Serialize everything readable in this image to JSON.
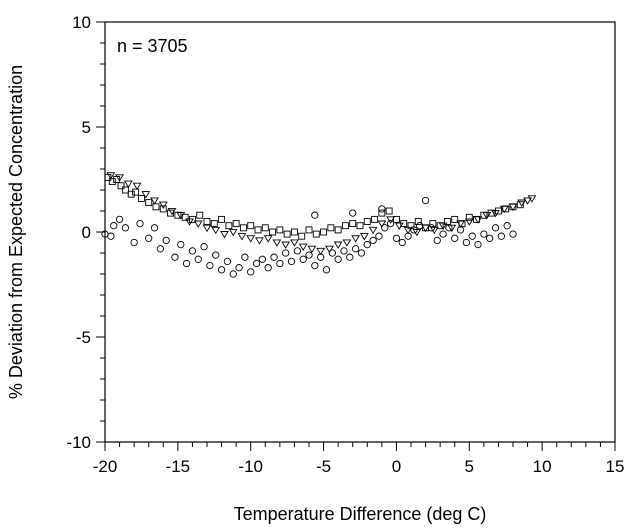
{
  "chart_data": {
    "type": "scatter",
    "title": "",
    "xlabel": "Temperature Difference (deg C)",
    "ylabel": "% Deviation from Expected Concentration",
    "xlim": [
      -20,
      15
    ],
    "ylim": [
      -10,
      10
    ],
    "xticks": [
      -20,
      -15,
      -10,
      -5,
      0,
      5,
      10,
      15
    ],
    "yticks": [
      -10,
      -5,
      0,
      5,
      10
    ],
    "xtick_labels": [
      "-20",
      "-15",
      "-10",
      "-5",
      "0",
      "5",
      "10",
      "15"
    ],
    "ytick_labels": [
      "-10",
      "-5",
      "0",
      "5",
      "10"
    ],
    "annotation": "n = 3705",
    "grid": false,
    "markers": [
      "circle",
      "square",
      "triangle-down"
    ],
    "series": [
      {
        "marker": "square",
        "points": [
          [
            -19.8,
            2.6
          ],
          [
            -19.5,
            2.4
          ],
          [
            -19.2,
            2.5
          ],
          [
            -18.9,
            2.2
          ],
          [
            -18.6,
            2.0
          ],
          [
            -18.2,
            1.8
          ],
          [
            -17.9,
            1.9
          ],
          [
            -17.5,
            1.6
          ],
          [
            -17.0,
            1.4
          ],
          [
            -16.5,
            1.2
          ],
          [
            -16.0,
            1.1
          ],
          [
            -15.5,
            0.9
          ],
          [
            -15.0,
            0.8
          ],
          [
            -14.5,
            0.7
          ],
          [
            -14.0,
            0.6
          ],
          [
            -13.5,
            0.8
          ],
          [
            -13.0,
            0.5
          ],
          [
            -12.5,
            0.4
          ],
          [
            -12.0,
            0.6
          ],
          [
            -11.5,
            0.3
          ],
          [
            -11.0,
            0.4
          ],
          [
            -10.5,
            0.2
          ],
          [
            -10.0,
            0.3
          ],
          [
            -9.5,
            0.1
          ],
          [
            -9.0,
            0.2
          ],
          [
            -8.5,
            0.0
          ],
          [
            -8.0,
            0.1
          ],
          [
            -7.5,
            -0.1
          ],
          [
            -7.0,
            0.0
          ],
          [
            -6.5,
            -0.2
          ],
          [
            -6.0,
            0.1
          ],
          [
            -5.5,
            -0.1
          ],
          [
            -5.0,
            0.0
          ],
          [
            -4.5,
            0.2
          ],
          [
            -4.0,
            0.1
          ],
          [
            -3.5,
            0.3
          ],
          [
            -3.0,
            0.4
          ],
          [
            -2.5,
            0.3
          ],
          [
            -2.0,
            0.5
          ],
          [
            -1.5,
            0.6
          ],
          [
            -1.0,
            0.9
          ],
          [
            -0.5,
            1.0
          ],
          [
            0.0,
            0.6
          ],
          [
            0.5,
            0.4
          ],
          [
            1.0,
            0.3
          ],
          [
            1.5,
            0.5
          ],
          [
            2.0,
            0.2
          ],
          [
            2.5,
            0.4
          ],
          [
            3.0,
            0.3
          ],
          [
            3.5,
            0.5
          ],
          [
            4.0,
            0.6
          ],
          [
            4.5,
            0.4
          ],
          [
            5.0,
            0.7
          ],
          [
            5.5,
            0.6
          ],
          [
            6.0,
            0.8
          ],
          [
            6.5,
            0.9
          ],
          [
            7.0,
            1.0
          ],
          [
            7.5,
            1.1
          ],
          [
            8.0,
            1.2
          ],
          [
            8.5,
            1.3
          ]
        ]
      },
      {
        "marker": "triangle-down",
        "points": [
          [
            -19.6,
            2.7
          ],
          [
            -19.0,
            2.6
          ],
          [
            -18.4,
            2.3
          ],
          [
            -17.8,
            2.2
          ],
          [
            -17.2,
            1.8
          ],
          [
            -16.6,
            1.5
          ],
          [
            -16.0,
            1.3
          ],
          [
            -15.4,
            1.0
          ],
          [
            -14.8,
            0.8
          ],
          [
            -14.2,
            0.5
          ],
          [
            -13.6,
            0.4
          ],
          [
            -13.0,
            0.2
          ],
          [
            -12.4,
            0.1
          ],
          [
            -11.8,
            -0.1
          ],
          [
            -11.2,
            0.0
          ],
          [
            -10.6,
            -0.2
          ],
          [
            -10.0,
            -0.3
          ],
          [
            -9.4,
            -0.4
          ],
          [
            -8.8,
            -0.3
          ],
          [
            -8.2,
            -0.5
          ],
          [
            -7.6,
            -0.6
          ],
          [
            -7.0,
            -0.5
          ],
          [
            -6.4,
            -0.7
          ],
          [
            -5.8,
            -0.8
          ],
          [
            -5.2,
            -0.9
          ],
          [
            -4.6,
            -0.8
          ],
          [
            -4.0,
            -0.6
          ],
          [
            -3.4,
            -0.5
          ],
          [
            -2.8,
            -0.3
          ],
          [
            -2.2,
            -0.2
          ],
          [
            -1.6,
            0.1
          ],
          [
            -1.0,
            0.4
          ],
          [
            -0.4,
            0.6
          ],
          [
            0.2,
            0.3
          ],
          [
            0.8,
            0.1
          ],
          [
            1.4,
            0.0
          ],
          [
            2.0,
            0.2
          ],
          [
            2.6,
            0.1
          ],
          [
            3.2,
            0.3
          ],
          [
            3.8,
            0.2
          ],
          [
            4.4,
            0.4
          ],
          [
            5.0,
            0.5
          ],
          [
            5.6,
            0.6
          ],
          [
            6.2,
            0.8
          ],
          [
            6.8,
            0.9
          ],
          [
            7.4,
            1.1
          ],
          [
            8.0,
            1.2
          ],
          [
            8.6,
            1.4
          ],
          [
            9.0,
            1.5
          ],
          [
            9.3,
            1.6
          ]
        ]
      },
      {
        "marker": "circle",
        "points": [
          [
            -20.0,
            -0.1
          ],
          [
            -19.6,
            -0.2
          ],
          [
            -19.4,
            0.3
          ],
          [
            -19.0,
            0.6
          ],
          [
            -18.6,
            0.2
          ],
          [
            -18.0,
            -0.5
          ],
          [
            -17.6,
            0.4
          ],
          [
            -17.0,
            -0.3
          ],
          [
            -16.6,
            0.2
          ],
          [
            -16.2,
            -0.8
          ],
          [
            -15.8,
            -0.4
          ],
          [
            -15.2,
            -1.2
          ],
          [
            -14.8,
            -0.6
          ],
          [
            -14.4,
            -1.5
          ],
          [
            -14.0,
            -0.9
          ],
          [
            -13.6,
            -1.3
          ],
          [
            -13.2,
            -0.7
          ],
          [
            -12.8,
            -1.6
          ],
          [
            -12.4,
            -1.1
          ],
          [
            -12.0,
            -1.8
          ],
          [
            -11.6,
            -1.4
          ],
          [
            -11.2,
            -2.0
          ],
          [
            -10.8,
            -1.7
          ],
          [
            -10.4,
            -1.2
          ],
          [
            -10.0,
            -1.9
          ],
          [
            -9.6,
            -1.5
          ],
          [
            -9.2,
            -1.3
          ],
          [
            -8.8,
            -1.7
          ],
          [
            -8.4,
            -1.2
          ],
          [
            -8.0,
            -1.5
          ],
          [
            -7.6,
            -1.0
          ],
          [
            -7.2,
            -1.4
          ],
          [
            -6.8,
            -0.9
          ],
          [
            -6.4,
            -1.3
          ],
          [
            -6.0,
            -1.1
          ],
          [
            -5.6,
            -1.6
          ],
          [
            -5.2,
            -1.2
          ],
          [
            -4.8,
            -1.8
          ],
          [
            -4.4,
            -1.0
          ],
          [
            -4.0,
            -1.3
          ],
          [
            -3.6,
            -0.9
          ],
          [
            -3.2,
            -1.2
          ],
          [
            -2.8,
            -0.8
          ],
          [
            -2.4,
            -1.0
          ],
          [
            -2.0,
            -0.6
          ],
          [
            -1.6,
            -0.4
          ],
          [
            -1.2,
            -0.2
          ],
          [
            -0.8,
            0.2
          ],
          [
            -0.4,
            0.4
          ],
          [
            0.0,
            -0.3
          ],
          [
            0.4,
            -0.5
          ],
          [
            0.8,
            -0.2
          ],
          [
            1.2,
            0.1
          ],
          [
            1.6,
            0.3
          ],
          [
            2.0,
            1.5
          ],
          [
            2.4,
            0.2
          ],
          [
            2.8,
            -0.4
          ],
          [
            3.2,
            -0.1
          ],
          [
            3.6,
            0.2
          ],
          [
            4.0,
            -0.3
          ],
          [
            4.4,
            0.1
          ],
          [
            4.8,
            -0.5
          ],
          [
            5.2,
            -0.2
          ],
          [
            5.6,
            -0.6
          ],
          [
            6.0,
            -0.1
          ],
          [
            6.4,
            -0.3
          ],
          [
            6.8,
            0.2
          ],
          [
            7.2,
            -0.2
          ],
          [
            7.6,
            0.3
          ],
          [
            8.0,
            -0.1
          ],
          [
            -5.6,
            0.8
          ],
          [
            -3.0,
            0.9
          ],
          [
            -1.0,
            1.1
          ]
        ]
      }
    ]
  }
}
